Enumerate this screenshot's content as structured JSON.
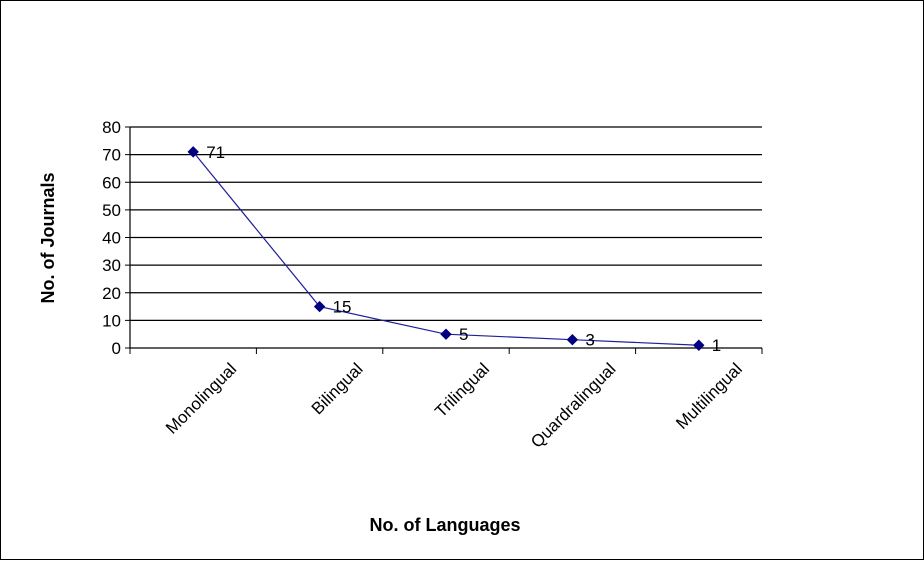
{
  "chart_data": {
    "type": "line",
    "title": "",
    "xlabel": "No. of Languages",
    "ylabel": "No. of Journals",
    "categories": [
      "Monolingual",
      "Bilingual",
      "Trilingual",
      "Quardralingual",
      "Multilingual"
    ],
    "series": [
      {
        "values": [
          71,
          15,
          5,
          3,
          1
        ],
        "color": "#1f1f9e",
        "marker": "diamond",
        "marker_color": "#000080"
      }
    ],
    "data_labels": [
      "71",
      "15",
      "5",
      "3",
      "1"
    ],
    "y_ticks": [
      0,
      10,
      20,
      30,
      40,
      50,
      60,
      70,
      80
    ],
    "ylim": [
      0,
      80
    ],
    "grid": true,
    "legend": "none"
  }
}
